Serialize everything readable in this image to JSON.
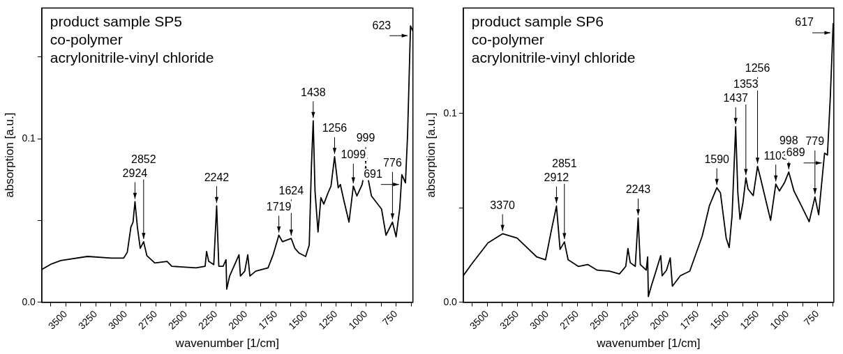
{
  "chart_data": [
    {
      "type": "line",
      "xlabel": "wavenumber [1/cm]",
      "ylabel": "absorption [a.u.]",
      "xlim": [
        3700,
        610
      ],
      "ylim": [
        0,
        0.18
      ],
      "xticks": [
        {
          "value": 3625,
          "label": null
        },
        3500,
        {
          "value": 3375,
          "label": null
        },
        3250,
        {
          "value": 3125,
          "label": null
        },
        3000,
        {
          "value": 2875,
          "label": null
        },
        2750,
        {
          "value": 2625,
          "label": null
        },
        2500,
        {
          "value": 2375,
          "label": null
        },
        2250,
        {
          "value": 2125,
          "label": null
        },
        2000,
        {
          "value": 1875,
          "label": null
        },
        1750,
        {
          "value": 1625,
          "label": null
        },
        1500,
        {
          "value": 1375,
          "label": null
        },
        1250,
        {
          "value": 1125,
          "label": null
        },
        1000,
        {
          "value": 875,
          "label": null
        },
        750,
        {
          "value": 625,
          "label": null
        }
      ],
      "yticks": [
        {
          "value": 0,
          "label": "0.0"
        },
        {
          "value": 0.05,
          "label": null
        },
        0.1,
        {
          "value": 0.15,
          "label": null
        }
      ],
      "grid": false,
      "legend": false,
      "marker": "none",
      "line_style": "solid",
      "x": [
        3700,
        3620,
        3542,
        3319,
        3120,
        3018,
        2988,
        2958,
        2940,
        2924,
        2904,
        2880,
        2852,
        2825,
        2759,
        2657,
        2617,
        2416,
        2340,
        2328,
        2310,
        2268,
        2244,
        2226,
        2190,
        2166,
        2160,
        2136,
        2100,
        2058,
        2046,
        2010,
        1985,
        1967,
        1919,
        1816,
        1774,
        1726,
        1696,
        1623,
        1593,
        1557,
        1503,
        1473,
        1455,
        1440,
        1425,
        1400,
        1376,
        1352,
        1316,
        1292,
        1262,
        1232,
        1214,
        1184,
        1142,
        1106,
        1076,
        1033,
        1003,
        955,
        871,
        834,
        780,
        750,
        720,
        702,
        672,
        654,
        630,
        612
      ],
      "series": [
        {
          "color": "#000000",
          "values": [
            0.02,
            0.0234,
            0.0255,
            0.028,
            0.027,
            0.027,
            0.0306,
            0.046,
            0.049,
            0.0615,
            0.046,
            0.033,
            0.037,
            0.0285,
            0.024,
            0.025,
            0.022,
            0.021,
            0.022,
            0.031,
            0.025,
            0.023,
            0.059,
            0.022,
            0.022,
            0.026,
            0.008,
            0.016,
            0.022,
            0.029,
            0.016,
            0.019,
            0.029,
            0.016,
            0.019,
            0.021,
            0.029,
            0.041,
            0.037,
            0.039,
            0.033,
            0.03,
            0.028,
            0.035,
            0.083,
            0.111,
            0.068,
            0.043,
            0.064,
            0.06,
            0.067,
            0.071,
            0.089,
            0.07,
            0.072,
            0.062,
            0.049,
            0.071,
            0.065,
            0.072,
            0.083,
            0.065,
            0.057,
            0.041,
            0.049,
            0.04,
            0.057,
            0.078,
            0.073,
            0.103,
            0.169,
            0.166
          ]
        }
      ],
      "annotations": [
        "product sample SP5",
        "co-polymer",
        "acrylonitrile-vinyl chloride",
        {
          "text": "2924",
          "x": 2924,
          "y": 0.0615
        },
        {
          "text": "2852",
          "x": 2852,
          "y": 0.037
        },
        {
          "text": "2242",
          "x": 2244,
          "y": 0.059
        },
        {
          "text": "1719",
          "x": 1726,
          "y": 0.041
        },
        {
          "text": "1624",
          "x": 1623,
          "y": 0.039
        },
        {
          "text": "1438",
          "x": 1440,
          "y": 0.111
        },
        {
          "text": "1256",
          "x": 1262,
          "y": 0.089
        },
        {
          "text": "1099",
          "x": 1106,
          "y": 0.071
        },
        {
          "text": "999",
          "x": 1003,
          "y": 0.083
        },
        {
          "text": "776",
          "x": 780,
          "y": 0.049
        },
        {
          "text": "691",
          "x": 702,
          "y": 0.078
        },
        {
          "text": "623",
          "x": 630,
          "y": 0.169
        }
      ]
    },
    {
      "type": "line",
      "xlabel": "wavenumber [1/cm]",
      "ylabel": "absorption [a.u.]",
      "xlim": [
        3700,
        615
      ],
      "ylim": [
        0,
        0.156
      ],
      "xticks": [
        {
          "value": 3625,
          "label": null
        },
        3500,
        {
          "value": 3375,
          "label": null
        },
        3250,
        {
          "value": 3125,
          "label": null
        },
        3000,
        {
          "value": 2875,
          "label": null
        },
        2750,
        {
          "value": 2625,
          "label": null
        },
        2500,
        {
          "value": 2375,
          "label": null
        },
        2250,
        {
          "value": 2125,
          "label": null
        },
        2000,
        {
          "value": 1875,
          "label": null
        },
        1750,
        {
          "value": 1625,
          "label": null
        },
        1500,
        {
          "value": 1375,
          "label": null
        },
        1250,
        {
          "value": 1125,
          "label": null
        },
        1000,
        {
          "value": 875,
          "label": null
        },
        750,
        {
          "value": 625,
          "label": null
        }
      ],
      "yticks": [
        {
          "value": 0,
          "label": "0.0"
        },
        {
          "value": 0.05,
          "label": null
        },
        0.1
      ],
      "grid": false,
      "legend": false,
      "marker": "none",
      "line_style": "solid",
      "x": [
        3700,
        3633,
        3494,
        3373,
        3252,
        3088,
        3015,
        2967,
        2924,
        2894,
        2858,
        2827,
        2742,
        2664,
        2585,
        2482,
        2400,
        2347,
        2329,
        2310,
        2268,
        2244,
        2226,
        2177,
        2165,
        2159,
        2135,
        2098,
        2056,
        2044,
        2008,
        1977,
        1959,
        1893,
        1814,
        1711,
        1650,
        1589,
        1559,
        1511,
        1486,
        1462,
        1432,
        1414,
        1396,
        1371,
        1347,
        1329,
        1286,
        1250,
        1226,
        1196,
        1141,
        1098,
        1068,
        1026,
        990,
        947,
        886,
        820,
        772,
        741,
        692,
        668,
        644,
        620
      ],
      "series": [
        {
          "color": "#000000",
          "values": [
            0.014,
            0.02,
            0.0315,
            0.0363,
            0.034,
            0.024,
            0.0225,
            0.038,
            0.051,
            0.028,
            0.032,
            0.0225,
            0.019,
            0.02,
            0.017,
            0.0165,
            0.015,
            0.019,
            0.0285,
            0.021,
            0.019,
            0.0446,
            0.02,
            0.017,
            0.024,
            0.003,
            0.0085,
            0.016,
            0.0247,
            0.014,
            0.017,
            0.0235,
            0.0085,
            0.014,
            0.0165,
            0.035,
            0.0513,
            0.0607,
            0.058,
            0.034,
            0.029,
            0.046,
            0.093,
            0.058,
            0.044,
            0.053,
            0.066,
            0.06,
            0.0565,
            0.072,
            0.066,
            0.058,
            0.0434,
            0.0626,
            0.059,
            0.0633,
            0.069,
            0.059,
            0.0513,
            0.0427,
            0.0558,
            0.0464,
            0.079,
            0.078,
            0.109,
            0.148
          ]
        }
      ],
      "annotations": [
        "product sample SP6",
        "co-polymer",
        "acrylonitrile-vinyl chloride",
        {
          "text": "3370",
          "x": 3373,
          "y": 0.0363
        },
        {
          "text": "2912",
          "x": 2924,
          "y": 0.051
        },
        {
          "text": "2851",
          "x": 2858,
          "y": 0.032
        },
        {
          "text": "2243",
          "x": 2244,
          "y": 0.0446
        },
        {
          "text": "1590",
          "x": 1589,
          "y": 0.0607
        },
        {
          "text": "1437",
          "x": 1432,
          "y": 0.093
        },
        {
          "text": "1353",
          "x": 1347,
          "y": 0.066
        },
        {
          "text": "1256",
          "x": 1250,
          "y": 0.072
        },
        {
          "text": "1103",
          "x": 1098,
          "y": 0.0626
        },
        {
          "text": "998",
          "x": 990,
          "y": 0.069
        },
        {
          "text": "779",
          "x": 772,
          "y": 0.0558
        },
        {
          "text": "689",
          "x": 692,
          "y": 0.079
        },
        {
          "text": "617",
          "x": 620,
          "y": 0.148
        }
      ]
    }
  ]
}
